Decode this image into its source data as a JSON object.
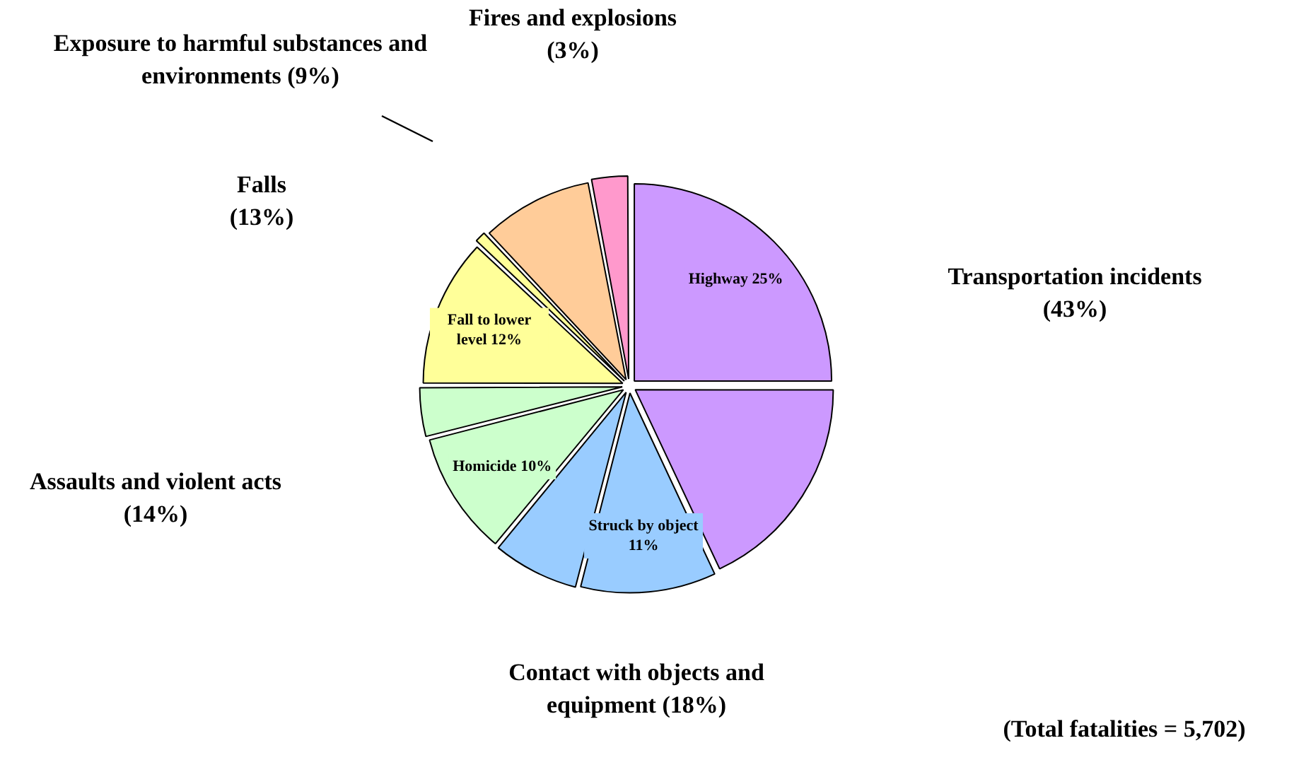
{
  "chart_data": {
    "type": "pie",
    "categories": [
      "Highway 25%",
      null,
      "Struck by object 11%",
      null,
      "Homicide 10%",
      null,
      "Fall to lower level 12%",
      null,
      null,
      null
    ],
    "values": [
      25,
      18,
      11,
      7,
      10,
      4,
      12,
      1,
      9,
      3
    ],
    "colors": [
      "#cc99ff",
      "#cc99ff",
      "#99ccff",
      "#99ccff",
      "#ccffcc",
      "#ccffcc",
      "#ffff99",
      "#ffff99",
      "#ffcc99",
      "#ff99cc"
    ],
    "annotations": [
      "Transportation incidents  (43%)",
      "Contact with objects and equipment (18%)",
      "Assaults and violent acts (14%)",
      "Falls (13%)",
      "Exposure to harmful substances and environments (9%)",
      "Fires and explosions (3%)",
      "(Total fatalities = 5,702)"
    ],
    "legend": false
  }
}
